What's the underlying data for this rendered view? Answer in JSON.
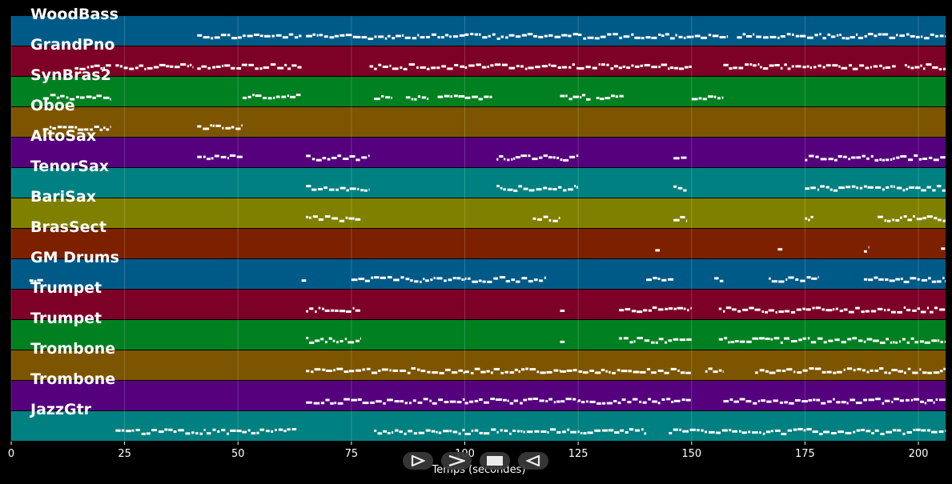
{
  "chart_data": {
    "type": "piano-roll",
    "xlabel": "Temps (secondes)",
    "xlim": [
      0,
      206
    ],
    "xticks": [
      0,
      25,
      50,
      75,
      100,
      125,
      150,
      175,
      200
    ],
    "tracks": [
      {
        "name": "WoodBass",
        "color": "#005a87",
        "segments": [
          [
            41,
            64
          ],
          [
            65,
            76
          ],
          [
            76,
            100
          ],
          [
            100,
            125
          ],
          [
            125,
            150
          ],
          [
            150,
            158
          ],
          [
            160,
            206
          ]
        ]
      },
      {
        "name": "GrandPno",
        "color": "#7d0026",
        "segments": [
          [
            14,
            22
          ],
          [
            23,
            40
          ],
          [
            41,
            64
          ],
          [
            79,
            100
          ],
          [
            100,
            125
          ],
          [
            125,
            150
          ],
          [
            157,
            195
          ],
          [
            197,
            206
          ]
        ]
      },
      {
        "name": "SynBras2",
        "color": "#008020",
        "segments": [
          [
            7,
            22
          ],
          [
            51,
            64
          ],
          [
            80,
            84
          ],
          [
            87,
            92
          ],
          [
            94,
            100
          ],
          [
            100,
            106
          ],
          [
            121,
            128
          ],
          [
            129,
            135
          ],
          [
            150,
            157
          ]
        ]
      },
      {
        "name": "Oboe",
        "color": "#7d5500",
        "segments": [
          [
            7,
            22
          ],
          [
            41,
            51
          ]
        ]
      },
      {
        "name": "AltoSax",
        "color": "#55007d",
        "segments": [
          [
            41,
            51
          ],
          [
            65,
            79
          ],
          [
            107,
            125
          ],
          [
            146,
            149
          ],
          [
            175,
            206
          ]
        ]
      },
      {
        "name": "TenorSax",
        "color": "#008080",
        "segments": [
          [
            65,
            79
          ],
          [
            107,
            125
          ],
          [
            146,
            149
          ],
          [
            175,
            206
          ]
        ]
      },
      {
        "name": "BariSax",
        "color": "#808000",
        "segments": [
          [
            65,
            77
          ],
          [
            115,
            121
          ],
          [
            146,
            149
          ],
          [
            175,
            177
          ],
          [
            191,
            206
          ]
        ]
      },
      {
        "name": "BrasSect",
        "color": "#7d2000",
        "segments": [
          [
            142,
            143
          ],
          [
            169,
            170
          ],
          [
            188,
            189
          ],
          [
            205,
            206
          ]
        ]
      },
      {
        "name": "GM Drums",
        "color": "#005a87",
        "segments": [
          [
            4,
            7
          ],
          [
            64,
            65
          ],
          [
            75,
            100
          ],
          [
            100,
            118
          ],
          [
            140,
            146
          ],
          [
            155,
            157
          ],
          [
            167,
            178
          ],
          [
            188,
            206
          ]
        ]
      },
      {
        "name": "Trumpet",
        "color": "#7d0026",
        "segments": [
          [
            65,
            77
          ],
          [
            121,
            122
          ],
          [
            134,
            150
          ],
          [
            156,
            206
          ]
        ]
      },
      {
        "name": "Trumpet",
        "color": "#008020",
        "segments": [
          [
            65,
            77
          ],
          [
            121,
            122
          ],
          [
            134,
            150
          ],
          [
            156,
            206
          ]
        ]
      },
      {
        "name": "Trombone",
        "color": "#7d5500",
        "segments": [
          [
            65,
            100
          ],
          [
            100,
            121
          ],
          [
            121,
            150
          ],
          [
            153,
            157
          ],
          [
            164,
            206
          ]
        ]
      },
      {
        "name": "Trombone",
        "color": "#55007d",
        "segments": [
          [
            65,
            100
          ],
          [
            100,
            125
          ],
          [
            125,
            150
          ],
          [
            157,
            206
          ]
        ]
      },
      {
        "name": "JazzGtr",
        "color": "#008080",
        "segments": [
          [
            23,
            63
          ],
          [
            80,
            100
          ],
          [
            100,
            140
          ],
          [
            145,
            206
          ]
        ]
      }
    ]
  },
  "controls": [
    {
      "name": "play-button",
      "icon": "play-outline-icon"
    },
    {
      "name": "forward-button",
      "icon": "chevron-right-icon"
    },
    {
      "name": "stop-button",
      "icon": "stop-icon"
    },
    {
      "name": "back-button",
      "icon": "play-back-outline-icon"
    }
  ]
}
